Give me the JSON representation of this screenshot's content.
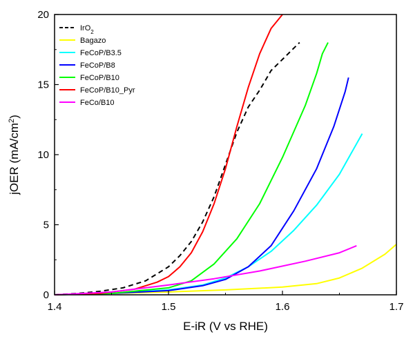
{
  "chart_data": {
    "type": "line",
    "xlabel": "E-iR (V vs RHE)",
    "ylabel_parts": [
      "jOER (mA/cm",
      "2",
      ")"
    ],
    "xlim": [
      1.4,
      1.7
    ],
    "ylim": [
      0,
      20
    ],
    "x_ticks": [
      {
        "value": 1.4,
        "label": "1.4"
      },
      {
        "value": 1.5,
        "label": "1.5"
      },
      {
        "value": 1.6,
        "label": "1.6"
      },
      {
        "value": 1.7,
        "label": "1.7"
      }
    ],
    "y_ticks": [
      {
        "value": 0,
        "label": "0"
      },
      {
        "value": 5,
        "label": "5"
      },
      {
        "value": 10,
        "label": "10"
      },
      {
        "value": 15,
        "label": "15"
      },
      {
        "value": 20,
        "label": "20"
      }
    ],
    "grid": false,
    "legend_position": "top-left",
    "series": [
      {
        "name": "IrO",
        "name_sub": "2",
        "color": "#000000",
        "dash": true,
        "points": [
          [
            1.4,
            0
          ],
          [
            1.42,
            0.1
          ],
          [
            1.44,
            0.25
          ],
          [
            1.46,
            0.5
          ],
          [
            1.48,
            1.0
          ],
          [
            1.5,
            2.0
          ],
          [
            1.51,
            2.8
          ],
          [
            1.52,
            3.8
          ],
          [
            1.53,
            5.2
          ],
          [
            1.54,
            7.0
          ],
          [
            1.55,
            9.3
          ],
          [
            1.56,
            11.6
          ],
          [
            1.57,
            13.4
          ],
          [
            1.58,
            14.6
          ],
          [
            1.585,
            15.3
          ],
          [
            1.59,
            16.0
          ],
          [
            1.6,
            16.8
          ],
          [
            1.61,
            17.6
          ],
          [
            1.615,
            18.0
          ]
        ]
      },
      {
        "name": "Bagazo",
        "color": "#ffff00",
        "dash": false,
        "points": [
          [
            1.4,
            0
          ],
          [
            1.45,
            0.1
          ],
          [
            1.5,
            0.2
          ],
          [
            1.55,
            0.35
          ],
          [
            1.6,
            0.55
          ],
          [
            1.63,
            0.8
          ],
          [
            1.65,
            1.2
          ],
          [
            1.67,
            1.9
          ],
          [
            1.69,
            2.9
          ],
          [
            1.7,
            3.6
          ]
        ]
      },
      {
        "name": "FeCoP/B3.5",
        "color": "#00ffff",
        "dash": false,
        "points": [
          [
            1.4,
            0
          ],
          [
            1.45,
            0.1
          ],
          [
            1.5,
            0.35
          ],
          [
            1.53,
            0.7
          ],
          [
            1.55,
            1.2
          ],
          [
            1.57,
            2.0
          ],
          [
            1.59,
            3.1
          ],
          [
            1.61,
            4.6
          ],
          [
            1.63,
            6.4
          ],
          [
            1.65,
            8.6
          ],
          [
            1.67,
            11.5
          ]
        ]
      },
      {
        "name": "FeCoP/B8",
        "color": "#0000ff",
        "dash": false,
        "points": [
          [
            1.4,
            0
          ],
          [
            1.45,
            0.1
          ],
          [
            1.5,
            0.3
          ],
          [
            1.53,
            0.65
          ],
          [
            1.55,
            1.1
          ],
          [
            1.57,
            2.0
          ],
          [
            1.59,
            3.5
          ],
          [
            1.61,
            6.0
          ],
          [
            1.63,
            9.0
          ],
          [
            1.645,
            12.0
          ],
          [
            1.655,
            14.5
          ],
          [
            1.658,
            15.5
          ]
        ]
      },
      {
        "name": "FeCoP/B10",
        "color": "#00ff00",
        "dash": false,
        "points": [
          [
            1.4,
            0
          ],
          [
            1.45,
            0.1
          ],
          [
            1.5,
            0.5
          ],
          [
            1.52,
            1.0
          ],
          [
            1.54,
            2.2
          ],
          [
            1.56,
            4.0
          ],
          [
            1.58,
            6.5
          ],
          [
            1.6,
            9.8
          ],
          [
            1.62,
            13.5
          ],
          [
            1.63,
            15.8
          ],
          [
            1.635,
            17.2
          ],
          [
            1.64,
            18.0
          ]
        ]
      },
      {
        "name": "FeCoP/B10_Pyr",
        "color": "#ff0000",
        "dash": false,
        "points": [
          [
            1.4,
            0
          ],
          [
            1.44,
            0.1
          ],
          [
            1.47,
            0.4
          ],
          [
            1.49,
            0.9
          ],
          [
            1.5,
            1.3
          ],
          [
            1.51,
            2.0
          ],
          [
            1.52,
            3.0
          ],
          [
            1.53,
            4.5
          ],
          [
            1.54,
            6.5
          ],
          [
            1.55,
            9.0
          ],
          [
            1.56,
            12.0
          ],
          [
            1.57,
            14.8
          ],
          [
            1.58,
            17.2
          ],
          [
            1.59,
            19.0
          ],
          [
            1.6,
            20.0
          ]
        ]
      },
      {
        "name": "FeCo/B10",
        "color": "#ff00ff",
        "dash": false,
        "points": [
          [
            1.4,
            0
          ],
          [
            1.45,
            0.2
          ],
          [
            1.5,
            0.7
          ],
          [
            1.54,
            1.15
          ],
          [
            1.58,
            1.7
          ],
          [
            1.62,
            2.4
          ],
          [
            1.65,
            3.0
          ],
          [
            1.665,
            3.5
          ]
        ]
      }
    ]
  }
}
